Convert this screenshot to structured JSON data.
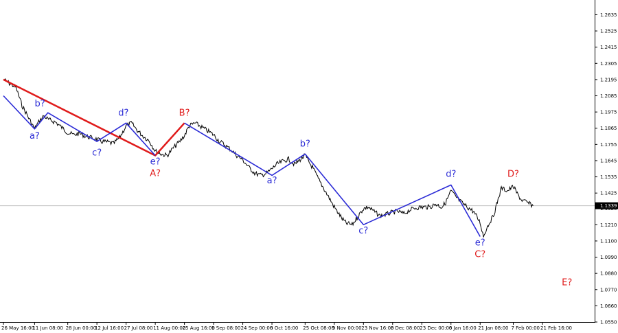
{
  "chart_data": {
    "type": "line",
    "title": "",
    "xlabel": "",
    "ylabel": "",
    "ylim": [
      1.055,
      1.2735
    ],
    "y_ticks": [
      "1.2635",
      "1.2525",
      "1.2415",
      "1.2305",
      "1.2195",
      "1.2085",
      "1.1975",
      "1.1865",
      "1.1755",
      "1.1645",
      "1.1535",
      "1.1425",
      "1.1320",
      "1.1210",
      "1.1100",
      "1.0990",
      "1.0880",
      "1.0770",
      "1.0660",
      "1.0550"
    ],
    "x_ticks": [
      "26 May 16:00",
      "11 Jun 08:00",
      "28 Jun 00:00",
      "12 Jul 16:00",
      "27 Jul 08:00",
      "11 Aug 00:00",
      "25 Aug 16:00",
      "9 Sep 08:00",
      "24 Sep 00:00",
      "8 Oct 16:00",
      "25 Oct 08:00",
      "9 Nov 00:00",
      "23 Nov 16:00",
      "8 Dec 08:00",
      "23 Dec 00:00",
      "6 Jan 16:00",
      "21 Jan 08:00",
      "7 Feb 00:00",
      "21 Feb 16:00"
    ],
    "current_price": "1.1339",
    "current_price_value": 1.1339,
    "grid": false,
    "colors": {
      "price": "#000000",
      "blue_wave": "#2b2bd6",
      "red_wave": "#e01b1b",
      "price_tag_bg": "#000000",
      "current_line": "#c0c0c0"
    },
    "series": [
      {
        "x": [
          "26 May 16:00",
          "2 Jun",
          "5 Jun",
          "11 Jun 08:00",
          "13 Jun",
          "16 Jun",
          "18 Jun",
          "22 Jun",
          "25 Jun",
          "28 Jun 00:00",
          "1 Jul",
          "4 Jul",
          "7 Jul",
          "10 Jul",
          "12 Jul 16:00",
          "15 Jul",
          "18 Jul",
          "21 Jul",
          "24 Jul",
          "27 Jul 08:00",
          "30 Jul",
          "2 Aug",
          "5 Aug",
          "8 Aug",
          "11 Aug 00:00",
          "14 Aug",
          "17 Aug",
          "20 Aug",
          "23 Aug",
          "25 Aug 16:00",
          "28 Aug",
          "31 Aug",
          "3 Sep",
          "6 Sep",
          "9 Sep 08:00",
          "12 Sep",
          "15 Sep",
          "18 Sep",
          "21 Sep",
          "24 Sep 00:00",
          "27 Sep",
          "30 Sep",
          "3 Oct",
          "6 Oct",
          "8 Oct 16:00",
          "11 Oct",
          "14 Oct",
          "17 Oct",
          "20 Oct",
          "25 Oct 08:00",
          "27 Oct",
          "29 Oct",
          "1 Nov",
          "4 Nov",
          "9 Nov 00:00",
          "11 Nov",
          "13 Nov",
          "15 Nov",
          "18 Nov",
          "23 Nov 16:00",
          "26 Nov",
          "29 Nov",
          "2 Dec",
          "5 Dec",
          "8 Dec 08:00",
          "11 Dec",
          "14 Dec",
          "17 Dec",
          "20 Dec",
          "23 Dec 00:00",
          "27 Dec",
          "30 Dec",
          "2 Jan",
          "4 Jan",
          "6 Jan 16:00",
          "9 Jan",
          "12 Jan",
          "15 Jan",
          "18 Jan",
          "21 Jan 08:00",
          "23 Jan",
          "25 Jan",
          "28 Jan",
          "1 Feb",
          "4 Feb",
          "7 Feb 00:00",
          "9 Feb",
          "11 Feb",
          "14 Feb",
          "17 Feb"
        ],
        "values": [
          1.2195,
          1.214,
          1.202,
          1.186,
          1.19,
          1.195,
          1.1925,
          1.1905,
          1.187,
          1.1835,
          1.182,
          1.183,
          1.181,
          1.18,
          1.179,
          1.1775,
          1.177,
          1.176,
          1.18,
          1.188,
          1.19,
          1.185,
          1.181,
          1.178,
          1.171,
          1.169,
          1.168,
          1.173,
          1.177,
          1.1815,
          1.188,
          1.19,
          1.1875,
          1.185,
          1.182,
          1.178,
          1.175,
          1.172,
          1.168,
          1.165,
          1.16,
          1.156,
          1.1545,
          1.156,
          1.159,
          1.162,
          1.164,
          1.1655,
          1.162,
          1.168,
          1.164,
          1.16,
          1.152,
          1.145,
          1.133,
          1.129,
          1.125,
          1.122,
          1.121,
          1.132,
          1.133,
          1.13,
          1.127,
          1.128,
          1.1295,
          1.13,
          1.1285,
          1.131,
          1.1325,
          1.133,
          1.133,
          1.135,
          1.133,
          1.136,
          1.144,
          1.14,
          1.136,
          1.133,
          1.13,
          1.1225,
          1.113,
          1.12,
          1.127,
          1.146,
          1.144,
          1.147,
          1.142,
          1.138,
          1.136,
          1.1339
        ]
      }
    ],
    "wave_lines": [
      {
        "name": "red",
        "points": [
          [
            "26 May 16:00",
            1.2195
          ],
          [
            "11 Aug 00:00",
            1.168
          ],
          [
            "25 Aug 16:00",
            1.19
          ]
        ]
      },
      {
        "name": "blue",
        "points": [
          [
            "26 May 16:00",
            1.2085
          ],
          [
            "11 Jun 08:00",
            1.186
          ],
          [
            "18 Jun",
            1.197
          ],
          [
            "12 Jul 16:00",
            1.1775
          ],
          [
            "27 Jul 08:00",
            1.19
          ],
          [
            "11 Aug 00:00",
            1.168
          ]
        ]
      },
      {
        "name": "blue",
        "points": [
          [
            "25 Aug 16:00",
            1.19
          ],
          [
            "8 Oct 16:00",
            1.1545
          ],
          [
            "25 Oct 08:00",
            1.169
          ],
          [
            "23 Nov 16:00",
            1.121
          ],
          [
            "6 Jan 16:00",
            1.148
          ],
          [
            "21 Jan 08:00",
            1.113
          ]
        ]
      }
    ],
    "annotations": [
      {
        "text": "b?",
        "x": "14 Jun",
        "y": 1.2012,
        "color": "blue"
      },
      {
        "text": "a?",
        "x": "11 Jun 08:00",
        "y": 1.1795,
        "color": "blue"
      },
      {
        "text": "d?",
        "x": "26 Jul",
        "y": 1.195,
        "color": "blue"
      },
      {
        "text": "c?",
        "x": "12 Jul 16:00",
        "y": 1.168,
        "color": "blue"
      },
      {
        "text": "B?",
        "x": "25 Aug 16:00",
        "y": 1.195,
        "color": "red"
      },
      {
        "text": "e?",
        "x": "11 Aug 00:00",
        "y": 1.162,
        "color": "blue"
      },
      {
        "text": "A?",
        "x": "11 Aug 00:00",
        "y": 1.154,
        "color": "red"
      },
      {
        "text": "b?",
        "x": "25 Oct 08:00",
        "y": 1.174,
        "color": "blue"
      },
      {
        "text": "a?",
        "x": "8 Oct 16:00",
        "y": 1.149,
        "color": "blue"
      },
      {
        "text": "c?",
        "x": "23 Nov 16:00",
        "y": 1.115,
        "color": "blue"
      },
      {
        "text": "d?",
        "x": "6 Jan 16:00",
        "y": 1.1535,
        "color": "blue"
      },
      {
        "text": "D?",
        "x": "7 Feb 00:00",
        "y": 1.1535,
        "color": "red"
      },
      {
        "text": "e?",
        "x": "21 Jan 08:00",
        "y": 1.107,
        "color": "blue"
      },
      {
        "text": "C?",
        "x": "21 Jan 08:00",
        "y": 1.099,
        "color": "red"
      },
      {
        "text": "E?",
        "x": "6 Mar",
        "y": 1.08,
        "color": "red"
      }
    ]
  }
}
